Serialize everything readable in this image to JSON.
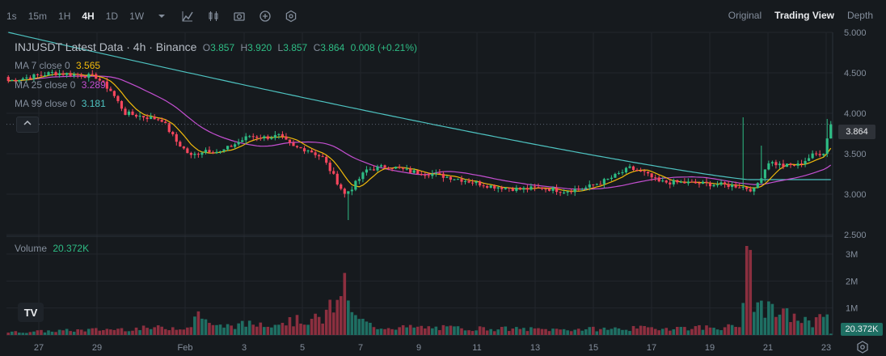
{
  "toolbar": {
    "timeframes": [
      "1s",
      "15m",
      "1H",
      "4H",
      "1D",
      "1W"
    ],
    "active_timeframe": "4H",
    "icons": [
      "chevron-down-icon",
      "indicators-icon",
      "candle-type-icon",
      "camera-icon",
      "add-icon",
      "settings-icon"
    ]
  },
  "views": [
    "Original",
    "Trading View",
    "Depth"
  ],
  "active_view": "Trading View",
  "legend": {
    "title": "INJUSDT Latest Data · 4h · Binance",
    "o_label": "O",
    "o_value": "3.857",
    "h_label": "H",
    "h_value": "3.920",
    "l_label": "L",
    "l_value": "3.857",
    "c_label": "C",
    "c_value": "3.864",
    "change": "0.008 (+0.21%)",
    "ma7_label": "MA 7 close 0",
    "ma7_value": "3.565",
    "ma25_label": "MA 25 close 0",
    "ma25_value": "3.289",
    "ma99_label": "MA 99 close 0",
    "ma99_value": "3.181"
  },
  "volume_legend": {
    "label": "Volume",
    "value": "20.372K"
  },
  "current_price": "3.864",
  "current_volume": "20.372K",
  "logo_text": "TV",
  "colors": {
    "up": "#2ebd85",
    "down": "#f6465d",
    "vol_up": "#1f6f63",
    "vol_down": "#8c2f3f",
    "ma7": "#f0b90b",
    "ma25": "#c44fd1",
    "ma99": "#4ec3c1"
  },
  "chart_data": {
    "type": "candlestick",
    "price_ylim": [
      2.5,
      5.0
    ],
    "price_ticks": [
      "5.000",
      "4.500",
      "4.000",
      "3.500",
      "3.000",
      "2.500"
    ],
    "volume_ylim": [
      0,
      3.3
    ],
    "volume_ticks": [
      "3M",
      "2M",
      "1M"
    ],
    "x_ticks": [
      "27",
      "29",
      "Feb",
      "3",
      "5",
      "7",
      "9",
      "11",
      "13",
      "15",
      "17",
      "19",
      "21",
      "23"
    ],
    "anchors": [
      [
        0,
        4.4
      ],
      [
        6,
        4.45
      ],
      [
        12,
        4.5
      ],
      [
        18,
        4.48
      ],
      [
        24,
        4.45
      ],
      [
        28,
        4.28
      ],
      [
        32,
        4.0
      ],
      [
        38,
        3.95
      ],
      [
        42,
        3.92
      ],
      [
        46,
        3.65
      ],
      [
        50,
        3.47
      ],
      [
        54,
        3.55
      ],
      [
        58,
        3.52
      ],
      [
        62,
        3.62
      ],
      [
        66,
        3.72
      ],
      [
        70,
        3.7
      ],
      [
        74,
        3.72
      ],
      [
        78,
        3.58
      ],
      [
        82,
        3.55
      ],
      [
        86,
        3.45
      ],
      [
        90,
        3.15
      ],
      [
        92,
        3.0
      ],
      [
        94,
        3.08
      ],
      [
        98,
        3.3
      ],
      [
        104,
        3.35
      ],
      [
        110,
        3.28
      ],
      [
        116,
        3.25
      ],
      [
        124,
        3.18
      ],
      [
        132,
        3.1
      ],
      [
        140,
        3.06
      ],
      [
        146,
        3.08
      ],
      [
        152,
        3.04
      ],
      [
        158,
        3.08
      ],
      [
        164,
        3.18
      ],
      [
        170,
        3.32
      ],
      [
        174,
        3.26
      ],
      [
        178,
        3.15
      ],
      [
        186,
        3.14
      ],
      [
        194,
        3.12
      ],
      [
        200,
        3.1
      ],
      [
        204,
        3.05
      ],
      [
        208,
        3.4
      ],
      [
        212,
        3.35
      ],
      [
        216,
        3.36
      ],
      [
        220,
        3.48
      ],
      [
        223,
        3.52
      ],
      [
        225,
        3.86
      ]
    ],
    "spikes": [
      {
        "i": 93,
        "low": 2.68
      },
      {
        "i": 201,
        "high": 3.95
      },
      {
        "i": 206,
        "high": 3.6
      },
      {
        "i": 224,
        "high": 3.93
      }
    ],
    "volume_anchors": [
      [
        0,
        0.1
      ],
      [
        50,
        0.3
      ],
      [
        52,
        0.9
      ],
      [
        56,
        0.3
      ],
      [
        86,
        0.6
      ],
      [
        90,
        1.3
      ],
      [
        92,
        2.3
      ],
      [
        94,
        0.7
      ],
      [
        100,
        0.3
      ],
      [
        150,
        0.2
      ],
      [
        200,
        0.3
      ],
      [
        202,
        3.3
      ],
      [
        204,
        1.3
      ],
      [
        208,
        0.9
      ],
      [
        214,
        0.7
      ],
      [
        220,
        0.4
      ],
      [
        223,
        1.1
      ],
      [
        225,
        0.05
      ]
    ],
    "ma99_start": 5.0,
    "ma99_end": 3.18
  }
}
